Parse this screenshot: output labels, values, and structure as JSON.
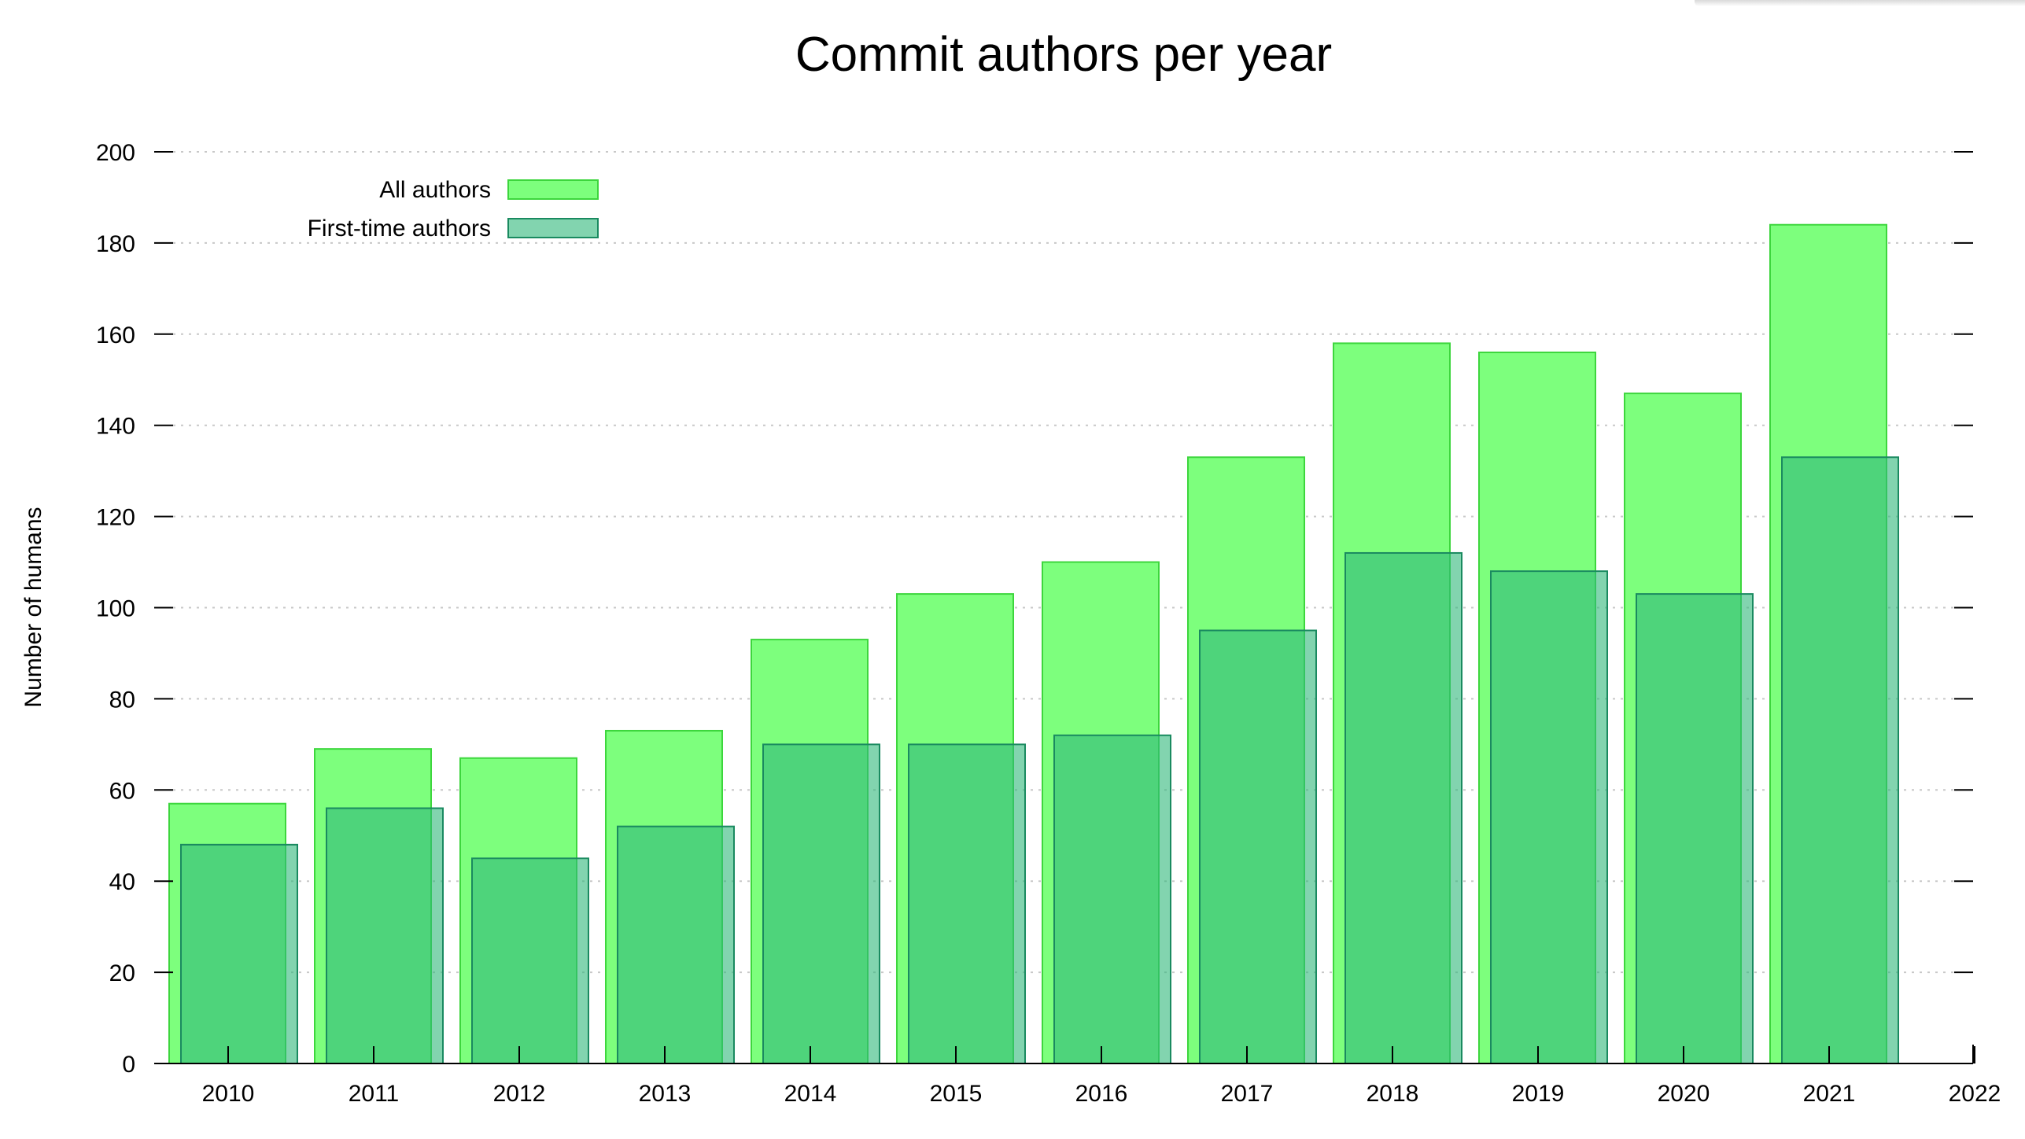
{
  "chart_data": {
    "type": "bar",
    "title": "Commit authors per year",
    "xlabel": "",
    "ylabel": "Number of humans",
    "x_ticks": [
      "2010",
      "2011",
      "2012",
      "2013",
      "2014",
      "2015",
      "2016",
      "2017",
      "2018",
      "2019",
      "2020",
      "2021",
      "2022"
    ],
    "categories": [
      "2010",
      "2011",
      "2012",
      "2013",
      "2014",
      "2015",
      "2016",
      "2017",
      "2018",
      "2019",
      "2020",
      "2021"
    ],
    "y_ticks": [
      0,
      20,
      40,
      60,
      80,
      100,
      120,
      140,
      160,
      180,
      200
    ],
    "ylim": [
      0,
      200
    ],
    "grid": true,
    "legend_position": "top-left",
    "series": [
      {
        "name": "All authors",
        "color": "#7dff7d",
        "stroke": "#3dd63d",
        "values": [
          57,
          69,
          67,
          73,
          93,
          103,
          110,
          133,
          158,
          156,
          147,
          184
        ]
      },
      {
        "name": "First-time authors",
        "color": "#2eb87a",
        "stroke": "#1a8a60",
        "values": [
          48,
          56,
          45,
          52,
          70,
          70,
          72,
          95,
          112,
          108,
          103,
          133
        ]
      }
    ]
  }
}
